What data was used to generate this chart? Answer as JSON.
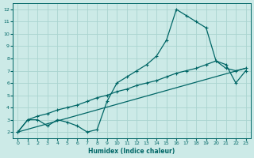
{
  "xlabel": "Humidex (Indice chaleur)",
  "ylabel": "",
  "bg_color": "#cceae7",
  "grid_color": "#aad4d0",
  "line_color": "#006666",
  "xlim": [
    -0.5,
    23.5
  ],
  "ylim": [
    1.5,
    12.5
  ],
  "yticks": [
    2,
    3,
    4,
    5,
    6,
    7,
    8,
    9,
    10,
    11,
    12
  ],
  "xticks": [
    0,
    1,
    2,
    3,
    4,
    5,
    6,
    7,
    8,
    9,
    10,
    11,
    12,
    13,
    14,
    15,
    16,
    17,
    18,
    19,
    20,
    21,
    22,
    23
  ],
  "line1_x": [
    0,
    1,
    2,
    3,
    4,
    5,
    6,
    7,
    8,
    9,
    10,
    11,
    12,
    13,
    14,
    15,
    16,
    17,
    18,
    19,
    20,
    21,
    22,
    23
  ],
  "line1_y": [
    2.0,
    3.0,
    3.0,
    2.5,
    3.0,
    2.8,
    2.5,
    2.0,
    2.2,
    4.5,
    6.0,
    6.5,
    7.0,
    7.5,
    8.2,
    9.5,
    12.0,
    11.5,
    11.0,
    10.5,
    7.8,
    7.5,
    6.0,
    7.0
  ],
  "line2_x": [
    0,
    1,
    2,
    3,
    4,
    5,
    6,
    7,
    8,
    9,
    10,
    11,
    12,
    13,
    14,
    15,
    16,
    17,
    18,
    19,
    20,
    21,
    22,
    23
  ],
  "line2_y": [
    2.0,
    3.0,
    3.3,
    3.5,
    3.8,
    4.0,
    4.2,
    4.5,
    4.8,
    5.0,
    5.3,
    5.5,
    5.8,
    6.0,
    6.2,
    6.5,
    6.8,
    7.0,
    7.2,
    7.5,
    7.8,
    7.2,
    7.0,
    7.2
  ],
  "line3_x": [
    0,
    23
  ],
  "line3_y": [
    2.0,
    7.2
  ]
}
